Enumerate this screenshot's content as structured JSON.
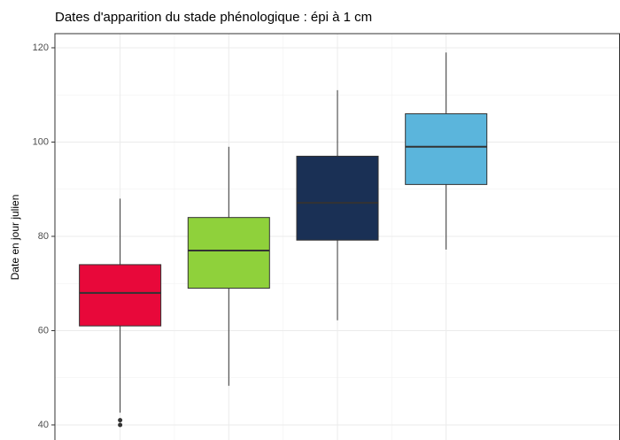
{
  "chart_data": {
    "type": "boxplot",
    "title": "Dates d'apparition du stade phénologique : épi à 1 cm",
    "y_label": "Date en jour julien",
    "ylim": [
      36.8,
      123
    ],
    "yticks": [
      40,
      60,
      80,
      100,
      120
    ],
    "y_minor_ticks": [
      50,
      70,
      90,
      110
    ],
    "grid": true,
    "boxes": [
      {
        "color": "#e8083a",
        "whisker_low": 42.6,
        "q1": 61,
        "median": 68,
        "q3": 74,
        "whisker_high": 88,
        "outliers": [
          41,
          40
        ]
      },
      {
        "color": "#8fd13b",
        "whisker_low": 48.3,
        "q1": 69,
        "median": 77,
        "q3": 84,
        "whisker_high": 99,
        "outliers": []
      },
      {
        "color": "#1a3055",
        "whisker_low": 62.2,
        "q1": 79.2,
        "median": 87.1,
        "q3": 97,
        "whisker_high": 111,
        "outliers": []
      },
      {
        "color": "#5bb5dc",
        "whisker_low": 77.2,
        "q1": 91,
        "median": 99,
        "q3": 106,
        "whisker_high": 119,
        "outliers": []
      }
    ]
  }
}
